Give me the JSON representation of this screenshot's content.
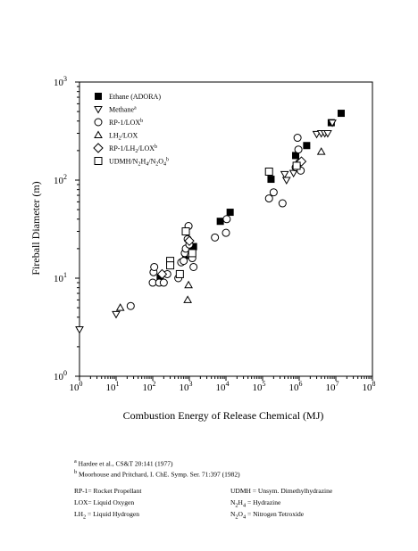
{
  "chart_data": {
    "type": "scatter",
    "title": "",
    "xlabel": "Combustion Energy of Release Chemical (MJ)",
    "ylabel": "Fireball Diameter (m)",
    "x_scale": "log",
    "y_scale": "log",
    "xlim": [
      1,
      100000000
    ],
    "ylim": [
      1,
      1000
    ],
    "x_ticks": [
      {
        "value": 1,
        "base": "10",
        "exp": "0"
      },
      {
        "value": 10,
        "base": "10",
        "exp": "1"
      },
      {
        "value": 100,
        "base": "10",
        "exp": "2"
      },
      {
        "value": 1000,
        "base": "10",
        "exp": "3"
      },
      {
        "value": 10000,
        "base": "10",
        "exp": "4"
      },
      {
        "value": 100000,
        "base": "10",
        "exp": "5"
      },
      {
        "value": 1000000,
        "base": "10",
        "exp": "6"
      },
      {
        "value": 10000000,
        "base": "10",
        "exp": "7"
      },
      {
        "value": 100000000,
        "base": "10",
        "exp": "8"
      }
    ],
    "y_ticks": [
      {
        "value": 1,
        "base": "10",
        "exp": "0"
      },
      {
        "value": 10,
        "base": "10",
        "exp": "1"
      },
      {
        "value": 100,
        "base": "10",
        "exp": "2"
      },
      {
        "value": 1000,
        "base": "10",
        "exp": "3"
      }
    ],
    "grid": false,
    "legend_position": "top-left",
    "series": [
      {
        "name": "Ethane (ADORA)",
        "marker": "filled-square",
        "points": [
          [
            160,
            10
          ],
          [
            800,
            17
          ],
          [
            1300,
            21
          ],
          [
            7000,
            38
          ],
          [
            13000,
            47
          ],
          [
            170000,
            102
          ],
          [
            800000,
            178
          ],
          [
            1600000,
            225
          ],
          [
            7500000,
            385
          ],
          [
            14000000,
            480
          ]
        ]
      },
      {
        "name": "Methane",
        "name_mark": "a",
        "marker": "triangle-down",
        "points": [
          [
            1,
            3
          ],
          [
            10,
            4.3
          ],
          [
            400000,
            115
          ],
          [
            450000,
            100
          ],
          [
            700000,
            118
          ],
          [
            3000000,
            295
          ],
          [
            4000000,
            300
          ],
          [
            5000000,
            300
          ],
          [
            6000000,
            300
          ],
          [
            8000000,
            385
          ]
        ]
      },
      {
        "name": "RP-1/LOX",
        "name_mark": "b",
        "marker": "circle",
        "points": [
          [
            25,
            5.2
          ],
          [
            100,
            9
          ],
          [
            105,
            11.5
          ],
          [
            110,
            13
          ],
          [
            150,
            9
          ],
          [
            200,
            9
          ],
          [
            250,
            11
          ],
          [
            500,
            10
          ],
          [
            600,
            14.5
          ],
          [
            700,
            15
          ],
          [
            750,
            18
          ],
          [
            800,
            20
          ],
          [
            900,
            25
          ],
          [
            950,
            34
          ],
          [
            1000,
            22
          ],
          [
            1100,
            17
          ],
          [
            1200,
            16
          ],
          [
            1300,
            13
          ],
          [
            5000,
            26
          ],
          [
            10000,
            29
          ],
          [
            10500,
            40
          ],
          [
            150000,
            65
          ],
          [
            200000,
            75
          ],
          [
            350000,
            58
          ],
          [
            800000,
            135
          ],
          [
            900000,
            270
          ],
          [
            950000,
            205
          ],
          [
            1000000,
            150
          ],
          [
            1100000,
            125
          ]
        ]
      },
      {
        "name": "LH2/LOX",
        "marker": "triangle-up",
        "points": [
          [
            13,
            5
          ],
          [
            900,
            6
          ],
          [
            950,
            8.5
          ],
          [
            4000000,
            195
          ]
        ]
      },
      {
        "name": "RP-1/LH2/LOX",
        "name_mark": "b",
        "marker": "diamond",
        "points": [
          [
            180,
            11
          ],
          [
            1000,
            24
          ],
          [
            1150000,
            155
          ]
        ]
      },
      {
        "name": "UDMH/N2H4/N2O4",
        "name_mark": "b",
        "marker": "square",
        "points": [
          [
            300,
            15
          ],
          [
            300,
            13.5
          ],
          [
            550,
            11
          ],
          [
            800,
            30
          ],
          [
            1200,
            18
          ],
          [
            150000,
            122
          ],
          [
            850000,
            140
          ]
        ]
      }
    ]
  },
  "legend": [
    {
      "marker": "filled-square",
      "label": "Ethane (ADORA)"
    },
    {
      "marker": "triangle-down",
      "label": "Methane",
      "sup": "a"
    },
    {
      "marker": "circle",
      "label": "RP-1/LOX",
      "sup": "b"
    },
    {
      "marker": "triangle-up",
      "label_parts": [
        "LH",
        "2",
        "/LOX"
      ]
    },
    {
      "marker": "diamond",
      "label_parts": [
        "RP-1/LH",
        "2",
        "/LOX"
      ],
      "sup": "b"
    },
    {
      "marker": "square",
      "label_parts": [
        "UDMH/N",
        "2",
        "H",
        "4",
        "/N",
        "2",
        "O",
        "4"
      ],
      "sup": "b"
    }
  ],
  "footnotes": {
    "ref_a": {
      "mark": "a",
      "text": "Hardee et al., CS&T 20:141 (1977)"
    },
    "ref_b": {
      "mark": "b",
      "text": "Moorhouse and Pritchard, I. ChE. Symp. Ser. 71:397 (1982)"
    }
  },
  "abbreviations": {
    "rp1": "RP-1= Rocket Propellant",
    "lox": "LOX= Liquid Oxygen",
    "lh2": [
      "LH",
      "2",
      " = Liquid Hydrogen"
    ],
    "udmh": "UDMH = Unsym. Dimethylhydrazine",
    "n2h4": [
      "N",
      "2",
      "H",
      "4",
      " = Hydrazine"
    ],
    "n2o4": [
      "N",
      "2",
      "O",
      "4",
      " = Nitrogen Tetroxide"
    ]
  }
}
